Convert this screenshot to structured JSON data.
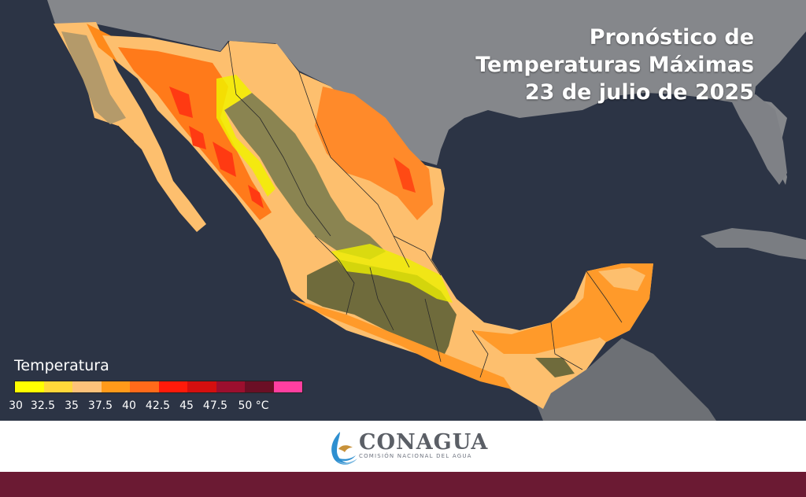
{
  "title": {
    "line1": "Pronóstico de",
    "line2": "Temperaturas Máximas",
    "line3": "23 de julio de 2025"
  },
  "legend": {
    "title": "Temperatura",
    "colors": [
      "#ffff00",
      "#ffd83a",
      "#fdc27a",
      "#ff9a1a",
      "#ff6a1a",
      "#ff1a0a",
      "#d40f0f",
      "#9c0f2e",
      "#6b0f25",
      "#ff3fa0"
    ],
    "ticks": [
      "30",
      "32.5",
      "35",
      "37.5",
      "40",
      "42.5",
      "45",
      "47.5",
      "50 °C"
    ]
  },
  "footer": {
    "brand": "CONAGUA",
    "subtitle": "COMISIÓN NACIONAL DEL AGUA"
  },
  "colors": {
    "bottom_bar": "#6b1a33",
    "ocean": "#2b3344",
    "land_usa": "#8a8c90"
  }
}
